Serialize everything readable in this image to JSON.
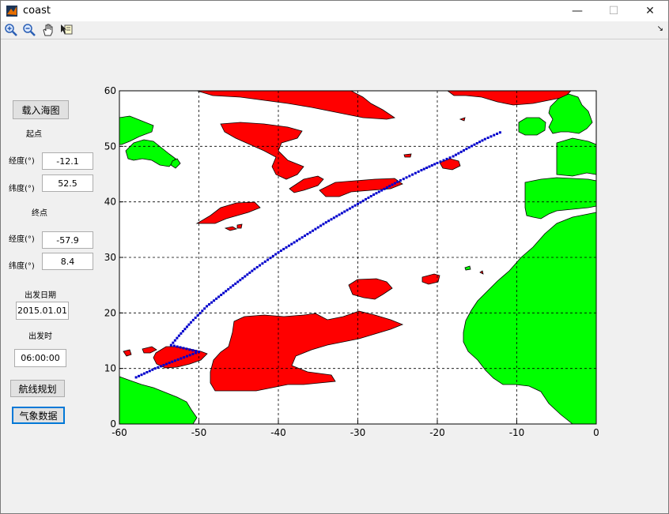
{
  "window": {
    "title": "coast"
  },
  "titlebar_controls": {
    "minimize": "—",
    "maximize": "☐",
    "close": "✕"
  },
  "toolbar": {
    "tools": [
      "zoom-in-icon",
      "zoom-out-icon",
      "pan-hand-icon",
      "data-cursor-icon"
    ],
    "dock": "↘"
  },
  "panel": {
    "load_chart_button": "载入海图",
    "start_label": "起点",
    "start_lon_label": "经度(°)",
    "start_lon_value": "-12.1",
    "start_lat_label": "纬度(°)",
    "start_lat_value": "52.5",
    "end_label": "终点",
    "end_lon_label": "经度(°)",
    "end_lon_value": "-57.9",
    "end_lat_label": "纬度(°)",
    "end_lat_value": "8.4",
    "depart_date_label": "出发日期",
    "depart_date_value": "2015.01.01",
    "depart_time_label": "出发时",
    "depart_time_value": "06:00:00",
    "route_plan_button": "航线规划",
    "weather_data_button": "气象数据"
  },
  "colors": {
    "land": "#00ff00",
    "weather": "#ff0000",
    "route": "#0000cc",
    "grid": "#000000"
  },
  "chart_data": {
    "type": "scatter",
    "xlim": [
      -60,
      0
    ],
    "ylim": [
      0,
      60
    ],
    "xticks": [
      -60,
      -50,
      -40,
      -30,
      -20,
      -10,
      0
    ],
    "yticks": [
      0,
      10,
      20,
      30,
      40,
      50,
      60
    ],
    "grid": true,
    "series": [
      {
        "points": [
          [
            -12.1,
            52.5
          ],
          [
            -14.0,
            51.3
          ],
          [
            -16.0,
            49.8
          ],
          [
            -18.0,
            48.2
          ],
          [
            -20.0,
            47.0
          ],
          [
            -22.0,
            45.7
          ],
          [
            -25.0,
            43.6
          ],
          [
            -28.0,
            41.3
          ],
          [
            -31.0,
            38.8
          ],
          [
            -34.0,
            36.3
          ],
          [
            -37.0,
            33.6
          ],
          [
            -40.0,
            30.9
          ],
          [
            -43.0,
            27.9
          ],
          [
            -46.0,
            24.6
          ],
          [
            -49.0,
            21.2
          ],
          [
            -51.0,
            18.3
          ],
          [
            -52.5,
            15.9
          ],
          [
            -53.5,
            14.2
          ],
          [
            -50.0,
            13.0
          ],
          [
            -53.0,
            11.4
          ],
          [
            -55.5,
            10.0
          ],
          [
            -57.9,
            8.4
          ]
        ]
      }
    ]
  }
}
